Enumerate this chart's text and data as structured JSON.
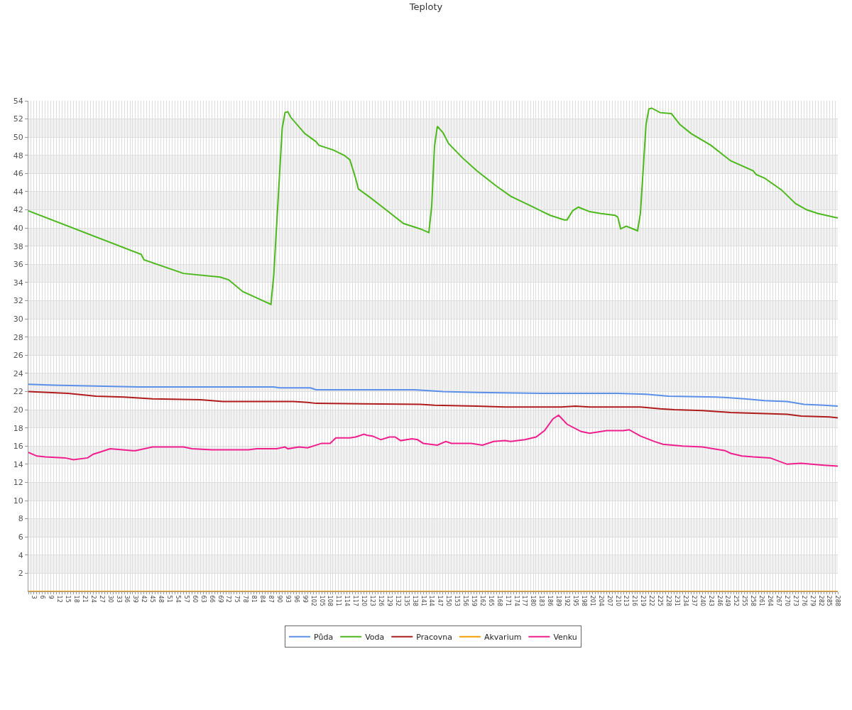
{
  "chart_data": {
    "type": "line",
    "title": "Teploty",
    "xlim": [
      1,
      288
    ],
    "xticks": [
      {
        "value": 1,
        "label": null
      },
      {
        "value": 2,
        "label": null
      },
      3,
      {
        "value": 4,
        "label": null
      },
      {
        "value": 5,
        "label": null
      },
      6,
      {
        "value": 7,
        "label": null
      },
      {
        "value": 8,
        "label": null
      },
      9,
      {
        "value": 10,
        "label": null
      },
      {
        "value": 11,
        "label": null
      },
      12,
      {
        "value": 13,
        "label": null
      },
      {
        "value": 14,
        "label": null
      },
      15,
      {
        "value": 16,
        "label": null
      },
      {
        "value": 17,
        "label": null
      },
      18,
      {
        "value": 19,
        "label": null
      },
      {
        "value": 20,
        "label": null
      },
      21,
      {
        "value": 22,
        "label": null
      },
      {
        "value": 23,
        "label": null
      },
      24,
      {
        "value": 25,
        "label": null
      },
      {
        "value": 26,
        "label": null
      },
      27,
      {
        "value": 28,
        "label": null
      },
      {
        "value": 29,
        "label": null
      },
      30,
      {
        "value": 31,
        "label": null
      },
      {
        "value": 32,
        "label": null
      },
      33,
      {
        "value": 34,
        "label": null
      },
      {
        "value": 35,
        "label": null
      },
      36,
      {
        "value": 37,
        "label": null
      },
      {
        "value": 38,
        "label": null
      },
      39,
      {
        "value": 40,
        "label": null
      },
      {
        "value": 41,
        "label": null
      },
      42,
      {
        "value": 43,
        "label": null
      },
      {
        "value": 44,
        "label": null
      },
      45,
      {
        "value": 46,
        "label": null
      },
      {
        "value": 47,
        "label": null
      },
      48,
      {
        "value": 49,
        "label": null
      },
      {
        "value": 50,
        "label": null
      },
      51,
      {
        "value": 52,
        "label": null
      },
      {
        "value": 53,
        "label": null
      },
      54,
      {
        "value": 55,
        "label": null
      },
      {
        "value": 56,
        "label": null
      },
      57,
      {
        "value": 58,
        "label": null
      },
      {
        "value": 59,
        "label": null
      },
      60,
      {
        "value": 61,
        "label": null
      },
      {
        "value": 62,
        "label": null
      },
      63,
      {
        "value": 64,
        "label": null
      },
      {
        "value": 65,
        "label": null
      },
      66,
      {
        "value": 67,
        "label": null
      },
      {
        "value": 68,
        "label": null
      },
      69,
      {
        "value": 70,
        "label": null
      },
      {
        "value": 71,
        "label": null
      },
      72,
      {
        "value": 73,
        "label": null
      },
      {
        "value": 74,
        "label": null
      },
      75,
      {
        "value": 76,
        "label": null
      },
      {
        "value": 77,
        "label": null
      },
      78,
      {
        "value": 79,
        "label": null
      },
      {
        "value": 80,
        "label": null
      },
      81,
      {
        "value": 82,
        "label": null
      },
      {
        "value": 83,
        "label": null
      },
      84,
      {
        "value": 85,
        "label": null
      },
      {
        "value": 86,
        "label": null
      },
      87,
      {
        "value": 88,
        "label": null
      },
      {
        "value": 89,
        "label": null
      },
      90,
      {
        "value": 91,
        "label": null
      },
      {
        "value": 92,
        "label": null
      },
      93,
      {
        "value": 94,
        "label": null
      },
      {
        "value": 95,
        "label": null
      },
      96,
      {
        "value": 97,
        "label": null
      },
      {
        "value": 98,
        "label": null
      },
      99,
      {
        "value": 100,
        "label": null
      },
      {
        "value": 101,
        "label": null
      },
      102,
      {
        "value": 103,
        "label": null
      },
      {
        "value": 104,
        "label": null
      },
      105,
      {
        "value": 106,
        "label": null
      },
      {
        "value": 107,
        "label": null
      },
      108,
      {
        "value": 109,
        "label": null
      },
      {
        "value": 110,
        "label": null
      },
      111,
      {
        "value": 112,
        "label": null
      },
      {
        "value": 113,
        "label": null
      },
      114,
      {
        "value": 115,
        "label": null
      },
      {
        "value": 116,
        "label": null
      },
      117,
      {
        "value": 118,
        "label": null
      },
      {
        "value": 119,
        "label": null
      },
      120,
      {
        "value": 121,
        "label": null
      },
      {
        "value": 122,
        "label": null
      },
      123,
      {
        "value": 124,
        "label": null
      },
      {
        "value": 125,
        "label": null
      },
      126,
      {
        "value": 127,
        "label": null
      },
      {
        "value": 128,
        "label": null
      },
      129,
      {
        "value": 130,
        "label": null
      },
      {
        "value": 131,
        "label": null
      },
      132,
      {
        "value": 133,
        "label": null
      },
      {
        "value": 134,
        "label": null
      },
      135,
      {
        "value": 136,
        "label": null
      },
      {
        "value": 137,
        "label": null
      },
      138,
      {
        "value": 139,
        "label": null
      },
      {
        "value": 140,
        "label": null
      },
      141,
      {
        "value": 142,
        "label": null
      },
      {
        "value": 143,
        "label": null
      },
      144,
      {
        "value": 145,
        "label": null
      },
      {
        "value": 146,
        "label": null
      },
      147,
      {
        "value": 148,
        "label": null
      },
      {
        "value": 149,
        "label": null
      },
      150,
      {
        "value": 151,
        "label": null
      },
      {
        "value": 152,
        "label": null
      },
      153,
      {
        "value": 154,
        "label": null
      },
      {
        "value": 155,
        "label": null
      },
      156,
      {
        "value": 157,
        "label": null
      },
      {
        "value": 158,
        "label": null
      },
      159,
      {
        "value": 160,
        "label": null
      },
      {
        "value": 161,
        "label": null
      },
      162,
      {
        "value": 163,
        "label": null
      },
      {
        "value": 164,
        "label": null
      },
      165,
      {
        "value": 166,
        "label": null
      },
      {
        "value": 167,
        "label": null
      },
      168,
      {
        "value": 169,
        "label": null
      },
      {
        "value": 170,
        "label": null
      },
      171,
      {
        "value": 172,
        "label": null
      },
      {
        "value": 173,
        "label": null
      },
      174,
      {
        "value": 175,
        "label": null
      },
      {
        "value": 176,
        "label": null
      },
      177,
      {
        "value": 178,
        "label": null
      },
      {
        "value": 179,
        "label": null
      },
      180,
      {
        "value": 181,
        "label": null
      },
      {
        "value": 182,
        "label": null
      },
      183,
      {
        "value": 184,
        "label": null
      },
      {
        "value": 185,
        "label": null
      },
      186,
      {
        "value": 187,
        "label": null
      },
      {
        "value": 188,
        "label": null
      },
      189,
      {
        "value": 190,
        "label": null
      },
      {
        "value": 191,
        "label": null
      },
      192,
      {
        "value": 193,
        "label": null
      },
      {
        "value": 194,
        "label": null
      },
      195,
      {
        "value": 196,
        "label": null
      },
      {
        "value": 197,
        "label": null
      },
      198,
      {
        "value": 199,
        "label": null
      },
      {
        "value": 200,
        "label": null
      },
      201,
      {
        "value": 202,
        "label": null
      },
      {
        "value": 203,
        "label": null
      },
      204,
      {
        "value": 205,
        "label": null
      },
      {
        "value": 206,
        "label": null
      },
      207,
      {
        "value": 208,
        "label": null
      },
      {
        "value": 209,
        "label": null
      },
      210,
      {
        "value": 211,
        "label": null
      },
      {
        "value": 212,
        "label": null
      },
      213,
      {
        "value": 214,
        "label": null
      },
      {
        "value": 215,
        "label": null
      },
      216,
      {
        "value": 217,
        "label": null
      },
      {
        "value": 218,
        "label": null
      },
      219,
      {
        "value": 220,
        "label": null
      },
      {
        "value": 221,
        "label": null
      },
      222,
      {
        "value": 223,
        "label": null
      },
      {
        "value": 224,
        "label": null
      },
      225,
      {
        "value": 226,
        "label": null
      },
      {
        "value": 227,
        "label": null
      },
      228,
      {
        "value": 229,
        "label": null
      },
      {
        "value": 230,
        "label": null
      },
      231,
      {
        "value": 232,
        "label": null
      },
      {
        "value": 233,
        "label": null
      },
      234,
      {
        "value": 235,
        "label": null
      },
      {
        "value": 236,
        "label": null
      },
      237,
      {
        "value": 238,
        "label": null
      },
      {
        "value": 239,
        "label": null
      },
      240,
      {
        "value": 241,
        "label": null
      },
      {
        "value": 242,
        "label": null
      },
      243,
      {
        "value": 244,
        "label": null
      },
      {
        "value": 245,
        "label": null
      },
      246,
      {
        "value": 247,
        "label": null
      },
      {
        "value": 248,
        "label": null
      },
      249,
      {
        "value": 250,
        "label": null
      },
      {
        "value": 251,
        "label": null
      },
      252,
      {
        "value": 253,
        "label": null
      },
      {
        "value": 254,
        "label": null
      },
      255,
      {
        "value": 256,
        "label": null
      },
      {
        "value": 257,
        "label": null
      },
      258,
      {
        "value": 259,
        "label": null
      },
      {
        "value": 260,
        "label": null
      },
      261,
      {
        "value": 262,
        "label": null
      },
      {
        "value": 263,
        "label": null
      },
      264,
      {
        "value": 265,
        "label": null
      },
      {
        "value": 266,
        "label": null
      },
      267,
      {
        "value": 268,
        "label": null
      },
      {
        "value": 269,
        "label": null
      },
      270,
      {
        "value": 271,
        "label": null
      },
      {
        "value": 272,
        "label": null
      },
      273,
      {
        "value": 274,
        "label": null
      },
      {
        "value": 275,
        "label": null
      },
      276,
      {
        "value": 277,
        "label": null
      },
      {
        "value": 278,
        "label": null
      },
      279,
      {
        "value": 280,
        "label": null
      },
      {
        "value": 281,
        "label": null
      },
      282,
      {
        "value": 283,
        "label": null
      },
      {
        "value": 284,
        "label": null
      },
      285,
      {
        "value": 286,
        "label": null
      },
      {
        "value": 287,
        "label": null
      },
      288
    ],
    "ylim": [
      0,
      54
    ],
    "yticks": [
      2,
      4,
      6,
      8,
      10,
      12,
      14,
      16,
      18,
      20,
      22,
      24,
      26,
      28,
      30,
      32,
      34,
      36,
      38,
      40,
      42,
      44,
      46,
      48,
      50,
      52,
      54
    ],
    "grid": true,
    "legend": "bottom",
    "marker": "none",
    "line_style": "solid",
    "bands": [
      {
        "axis": "y",
        "from": 2,
        "to": 4,
        "color": "#f2f2f2"
      },
      {
        "axis": "y",
        "from": 6,
        "to": 8,
        "color": "#f2f2f2"
      },
      {
        "axis": "y",
        "from": 10,
        "to": 12,
        "color": "#f2f2f2"
      },
      {
        "axis": "y",
        "from": 14,
        "to": 16,
        "color": "#f2f2f2"
      },
      {
        "axis": "y",
        "from": 18,
        "to": 20,
        "color": "#f2f2f2"
      },
      {
        "axis": "y",
        "from": 22,
        "to": 24,
        "color": "#f2f2f2"
      },
      {
        "axis": "y",
        "from": 26,
        "to": 28,
        "color": "#f2f2f2"
      },
      {
        "axis": "y",
        "from": 30,
        "to": 32,
        "color": "#f2f2f2"
      },
      {
        "axis": "y",
        "from": 34,
        "to": 36,
        "color": "#f2f2f2"
      },
      {
        "axis": "y",
        "from": 38,
        "to": 40,
        "color": "#f2f2f2"
      },
      {
        "axis": "y",
        "from": 42,
        "to": 44,
        "color": "#f2f2f2"
      },
      {
        "axis": "y",
        "from": 46,
        "to": 48,
        "color": "#f2f2f2"
      },
      {
        "axis": "y",
        "from": 50,
        "to": 52,
        "color": "#f2f2f2"
      }
    ],
    "series": [
      {
        "name": "Půda",
        "color": "#5b8fe8",
        "x": [
          1,
          10,
          25,
          40,
          88,
          90,
          101,
          103,
          138,
          148,
          160,
          185,
          210,
          220,
          228,
          245,
          255,
          262,
          270,
          276,
          283,
          288
        ],
        "values": [
          22.8,
          22.7,
          22.6,
          22.5,
          22.5,
          22.4,
          22.4,
          22.2,
          22.2,
          22.0,
          21.9,
          21.8,
          21.8,
          21.7,
          21.5,
          21.4,
          21.2,
          21.0,
          20.9,
          20.6,
          20.5,
          20.4
        ]
      },
      {
        "name": "Voda",
        "color": "#4cb81c",
        "x": [
          1,
          41,
          42,
          56,
          69,
          72,
          77,
          82,
          87,
          88,
          91,
          92,
          93,
          94,
          99,
          103,
          104,
          109,
          113,
          115,
          117,
          118,
          122,
          127,
          134,
          140,
          143,
          144,
          145,
          146,
          148,
          150,
          155,
          160,
          167,
          172,
          180,
          186,
          191,
          192,
          194,
          196,
          200,
          204,
          209,
          210,
          211,
          213,
          217,
          218,
          220,
          221,
          222,
          225,
          229,
          230,
          232,
          236,
          243,
          250,
          258,
          259,
          262,
          268,
          273,
          277,
          281,
          288
        ],
        "values": [
          41.9,
          37.1,
          36.5,
          35.0,
          34.6,
          34.3,
          33.0,
          32.3,
          31.6,
          34.8,
          51.0,
          52.7,
          52.8,
          52.2,
          50.4,
          49.5,
          49.1,
          48.6,
          48.0,
          47.5,
          45.5,
          44.3,
          43.4,
          42.2,
          40.5,
          39.9,
          39.5,
          42.4,
          49.0,
          51.2,
          50.5,
          49.3,
          47.7,
          46.3,
          44.6,
          43.5,
          42.3,
          41.4,
          40.9,
          40.9,
          41.9,
          42.3,
          41.8,
          41.6,
          41.4,
          41.2,
          39.9,
          40.2,
          39.7,
          41.6,
          51.4,
          53.1,
          53.2,
          52.7,
          52.6,
          52.2,
          51.4,
          50.4,
          49.1,
          47.4,
          46.3,
          45.9,
          45.5,
          44.2,
          42.7,
          42.0,
          41.6,
          41.1
        ]
      },
      {
        "name": "Pracovna",
        "color": "#b01c1c",
        "x": [
          1,
          15,
          25,
          35,
          45,
          62,
          70,
          95,
          100,
          103,
          140,
          145,
          160,
          170,
          190,
          195,
          200,
          218,
          225,
          230,
          240,
          250,
          260,
          270,
          275,
          285,
          288
        ],
        "values": [
          22.0,
          21.8,
          21.5,
          21.4,
          21.2,
          21.1,
          20.9,
          20.9,
          20.8,
          20.7,
          20.6,
          20.5,
          20.4,
          20.3,
          20.3,
          20.4,
          20.3,
          20.3,
          20.1,
          20.0,
          19.9,
          19.7,
          19.6,
          19.5,
          19.3,
          19.2,
          19.1
        ]
      },
      {
        "name": "Akvarium",
        "color": "#f5a000",
        "x": [
          1,
          288
        ],
        "values": [
          0,
          0
        ]
      },
      {
        "name": "Venku",
        "color": "#f01e8c",
        "x": [
          1,
          4,
          7,
          14,
          17,
          22,
          24,
          26,
          30,
          38,
          39,
          45,
          56,
          59,
          66,
          79,
          82,
          89,
          92,
          93,
          97,
          100,
          105,
          108,
          110,
          115,
          117,
          120,
          121,
          123,
          126,
          129,
          131,
          133,
          137,
          139,
          141,
          146,
          149,
          151,
          158,
          162,
          166,
          170,
          172,
          177,
          181,
          184,
          187,
          189,
          192,
          197,
          200,
          206,
          209,
          212,
          214,
          218,
          223,
          226,
          233,
          240,
          248,
          250,
          254,
          258,
          264,
          270,
          275,
          283,
          288
        ],
        "values": [
          15.3,
          14.9,
          14.8,
          14.7,
          14.5,
          14.7,
          15.1,
          15.3,
          15.7,
          15.5,
          15.5,
          15.9,
          15.9,
          15.7,
          15.6,
          15.6,
          15.7,
          15.7,
          15.9,
          15.7,
          15.9,
          15.8,
          16.3,
          16.3,
          16.9,
          16.9,
          17.0,
          17.3,
          17.2,
          17.1,
          16.7,
          17.0,
          17.0,
          16.6,
          16.8,
          16.7,
          16.3,
          16.1,
          16.5,
          16.3,
          16.3,
          16.1,
          16.5,
          16.6,
          16.5,
          16.7,
          17.0,
          17.7,
          19.0,
          19.4,
          18.4,
          17.6,
          17.4,
          17.7,
          17.7,
          17.7,
          17.8,
          17.1,
          16.5,
          16.2,
          16.0,
          15.9,
          15.5,
          15.2,
          14.9,
          14.8,
          14.7,
          14.0,
          14.1,
          13.9,
          13.8
        ]
      }
    ]
  }
}
